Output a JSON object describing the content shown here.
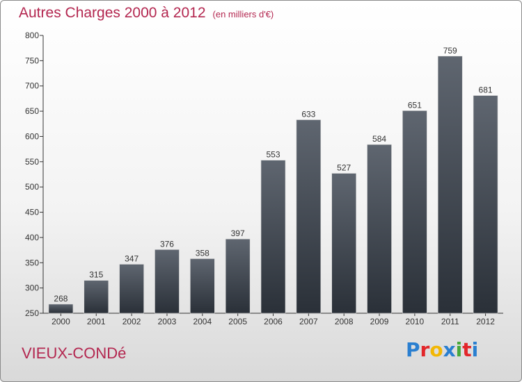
{
  "header": {
    "title": "Autres Charges 2000 à 2012",
    "unit": "(en milliers d'€)"
  },
  "footer": {
    "town": "VIEUX-CONDé",
    "logo_letters": [
      "P",
      "r",
      "o",
      "x",
      "i",
      "t",
      "i"
    ],
    "logo_colors": [
      "#2a7fd0",
      "#e2262a",
      "#f2b705",
      "#2a7fd0",
      "#46a83b",
      "#e2262a",
      "#2a7fd0"
    ]
  },
  "colors": {
    "title": "#b3264f",
    "bar_top": "#5f6670",
    "bar_bottom": "#2a3038"
  },
  "chart_data": {
    "type": "bar",
    "title": "Autres Charges 2000 à 2012",
    "subtitle": "(en milliers d'€)",
    "categories": [
      "2000",
      "2001",
      "2002",
      "2003",
      "2004",
      "2005",
      "2006",
      "2007",
      "2008",
      "2009",
      "2010",
      "2011",
      "2012"
    ],
    "values": [
      268,
      315,
      347,
      376,
      358,
      397,
      553,
      633,
      527,
      584,
      651,
      759,
      681
    ],
    "ylim": [
      250,
      800
    ],
    "yticks": [
      250,
      300,
      350,
      400,
      450,
      500,
      550,
      600,
      650,
      700,
      750,
      800
    ],
    "xlabel": "",
    "ylabel": "",
    "grid": false,
    "data_labels": true
  }
}
